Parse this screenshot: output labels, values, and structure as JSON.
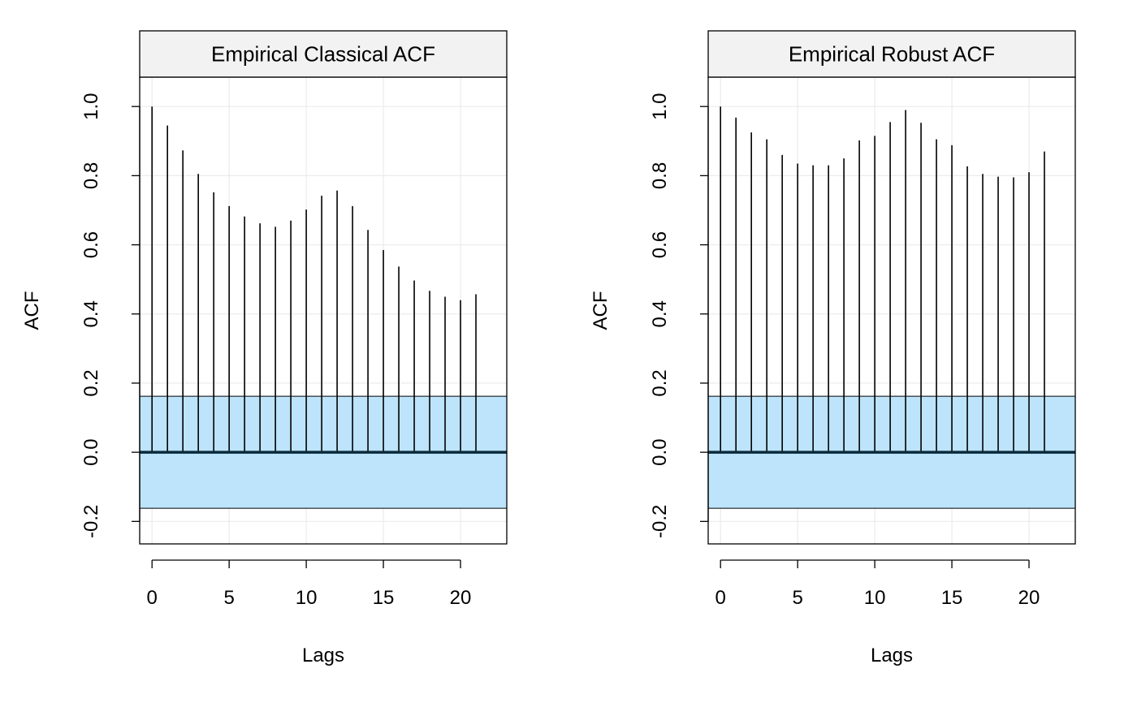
{
  "chart_data": [
    {
      "type": "bar",
      "subtype": "acf-stem",
      "title": "Empirical Classical ACF",
      "xlabel": "Lags",
      "ylabel": "ACF",
      "x_ticks": [
        "0",
        "5",
        "10",
        "15",
        "20"
      ],
      "y_ticks": [
        "-0.2",
        "0.0",
        "0.2",
        "0.4",
        "0.6",
        "0.8",
        "1.0"
      ],
      "xlim": [
        -0.8,
        23.0
      ],
      "ylim": [
        -0.265,
        1.085
      ],
      "grid": true,
      "confidence_band": [
        -0.162,
        0.162
      ],
      "lags": [
        0,
        1,
        2,
        3,
        4,
        5,
        6,
        7,
        8,
        9,
        10,
        11,
        12,
        13,
        14,
        15,
        16,
        17,
        18,
        19,
        20,
        21
      ],
      "values": [
        1.0,
        0.945,
        0.873,
        0.805,
        0.752,
        0.712,
        0.682,
        0.662,
        0.652,
        0.67,
        0.702,
        0.742,
        0.757,
        0.712,
        0.643,
        0.585,
        0.537,
        0.497,
        0.467,
        0.45,
        0.44,
        0.457
      ]
    },
    {
      "type": "bar",
      "subtype": "acf-stem",
      "title": "Empirical Robust ACF",
      "xlabel": "Lags",
      "ylabel": "ACF",
      "x_ticks": [
        "0",
        "5",
        "10",
        "15",
        "20"
      ],
      "y_ticks": [
        "-0.2",
        "0.0",
        "0.2",
        "0.4",
        "0.6",
        "0.8",
        "1.0"
      ],
      "xlim": [
        -0.8,
        23.0
      ],
      "ylim": [
        -0.265,
        1.085
      ],
      "grid": true,
      "confidence_band": [
        -0.162,
        0.162
      ],
      "lags": [
        0,
        1,
        2,
        3,
        4,
        5,
        6,
        7,
        8,
        9,
        10,
        11,
        12,
        13,
        14,
        15,
        16,
        17,
        18,
        19,
        20,
        21
      ],
      "values": [
        1.0,
        0.968,
        0.925,
        0.905,
        0.86,
        0.835,
        0.83,
        0.83,
        0.85,
        0.902,
        0.915,
        0.955,
        0.99,
        0.953,
        0.905,
        0.888,
        0.827,
        0.805,
        0.797,
        0.795,
        0.81,
        0.87
      ]
    }
  ],
  "colors": {
    "band_fill": "#bde4fb",
    "grid": "#ebebeb",
    "strip_bg": "#f2f2f2",
    "zero_line": "#0b2a3e",
    "stem": "#000000"
  }
}
